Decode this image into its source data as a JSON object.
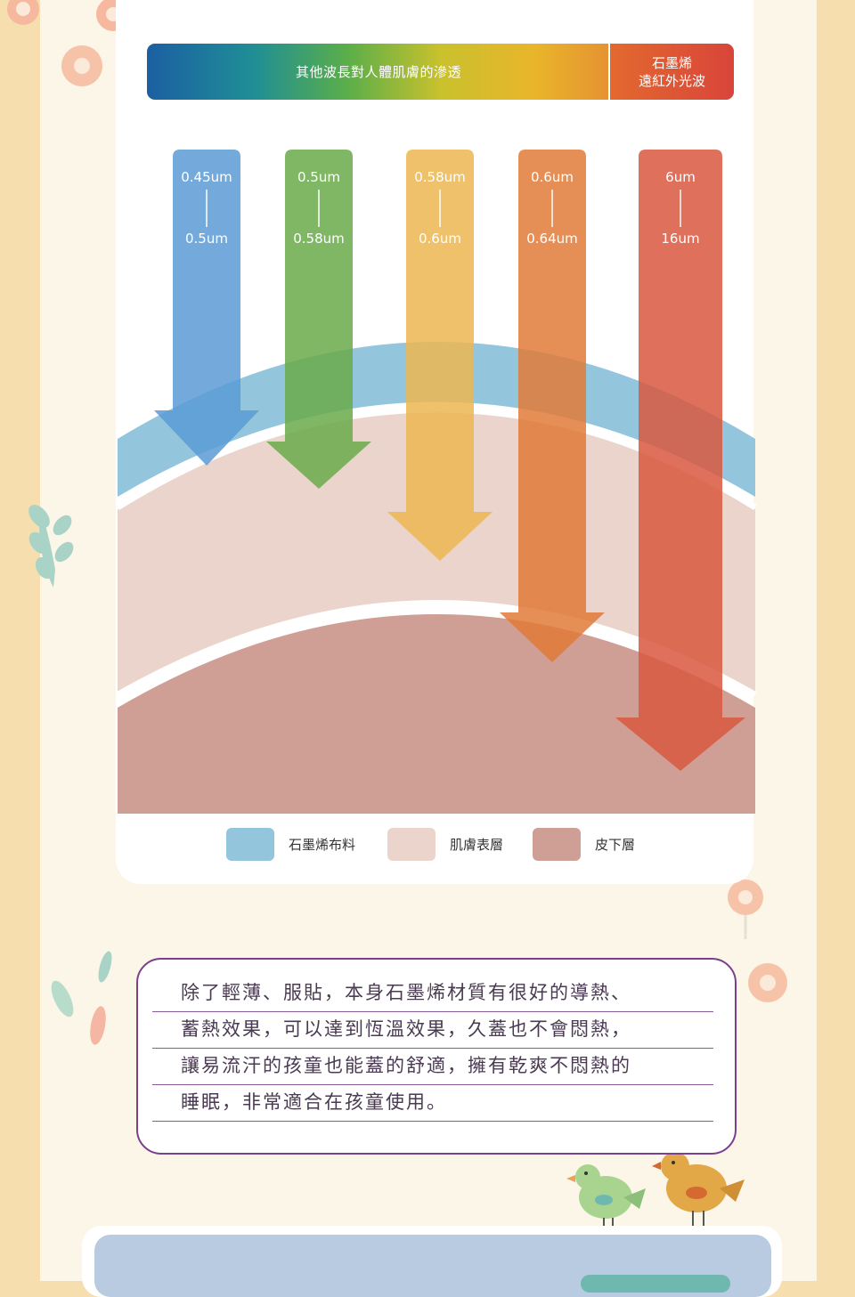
{
  "spectrum": {
    "other_label": "其他波長對人體肌膚的滲透",
    "graphene_label_line1": "石墨烯",
    "graphene_label_line2": "遠紅外光波"
  },
  "arrows": [
    {
      "from": "0.45um",
      "to": "0.5um",
      "color": "#5b9bd5"
    },
    {
      "from": "0.5um",
      "to": "0.58um",
      "color": "#6aaa4a"
    },
    {
      "from": "0.58um",
      "to": "0.6um",
      "color": "#ecb651"
    },
    {
      "from": "0.6um",
      "to": "0.64um",
      "color": "#e07a38"
    },
    {
      "from": "6um",
      "to": "16um",
      "color": "#d9583f"
    }
  ],
  "legend": [
    {
      "label": "石墨烯布料",
      "color": "#93c5dd"
    },
    {
      "label": "肌膚表層",
      "color": "#ebd4cb"
    },
    {
      "label": "皮下層",
      "color": "#cf9e94"
    }
  ],
  "description": {
    "lines": [
      "除了輕薄、服貼，本身石墨烯材質有很好的導熱、",
      "蓄熱效果，可以達到恆溫效果，久蓋也不會悶熱，",
      "讓易流汗的孩童也能蓋的舒適，擁有乾爽不悶熱的",
      "睡眠，非常適合在孩童使用。"
    ]
  }
}
